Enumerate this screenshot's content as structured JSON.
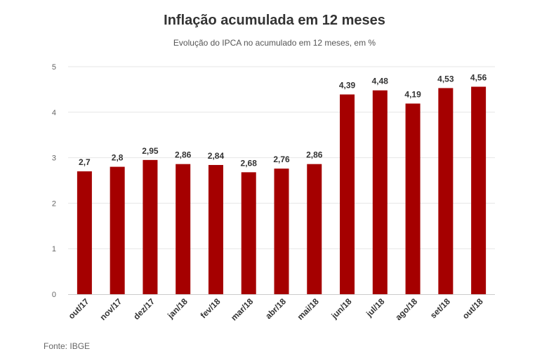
{
  "header": {
    "title": "Inflação acumulada em 12 meses",
    "subtitle": "Evolução do IPCA no acumulado em 12 meses, em %"
  },
  "footer": {
    "source": "Fonte: IBGE"
  },
  "chart_data": {
    "type": "bar",
    "title": "Inflação acumulada em 12 meses",
    "subtitle": "Evolução do IPCA no acumulado em 12 meses, em %",
    "xlabel": "",
    "ylabel": "",
    "ylim": [
      0,
      5
    ],
    "yticks": [
      0,
      1,
      2,
      3,
      4,
      5
    ],
    "grid": true,
    "legend": "none",
    "bar_color": "#a50000",
    "categories": [
      "out/17",
      "nov/17",
      "dez/17",
      "jan/18",
      "fev/18",
      "mar/18",
      "abr/18",
      "mai/18",
      "jun/18",
      "jul/18",
      "ago/18",
      "set/18",
      "out/18"
    ],
    "values": [
      2.7,
      2.8,
      2.95,
      2.86,
      2.84,
      2.68,
      2.76,
      2.86,
      4.39,
      4.48,
      4.19,
      4.53,
      4.56
    ],
    "value_labels": [
      "2,7",
      "2,8",
      "2,95",
      "2,86",
      "2,84",
      "2,68",
      "2,76",
      "2,86",
      "4,39",
      "4,48",
      "4,19",
      "4,53",
      "4,56"
    ]
  }
}
